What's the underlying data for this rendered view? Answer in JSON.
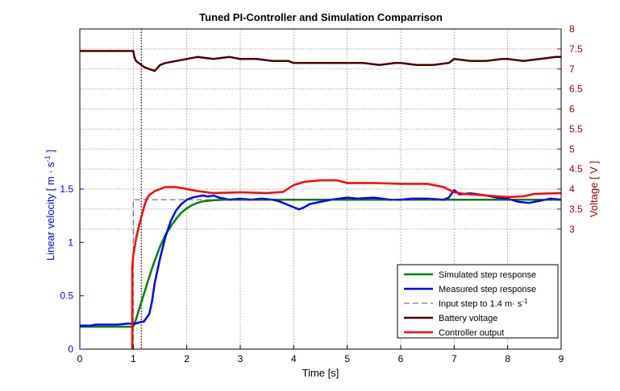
{
  "chart_data": {
    "type": "line",
    "title": "Tuned PI-Controller and Simulation Comparrison",
    "xlabel": "Time [s]",
    "ylabel_left": "Linear velocity [ m · s",
    "ylabel_left_exp": "-1",
    "ylabel_left_close": " ]",
    "ylabel_right": "Voltage [ V ]",
    "xlim": [
      0,
      9
    ],
    "ylim_left": [
      0,
      3.0
    ],
    "ylim_right": [
      0,
      8
    ],
    "grid": true,
    "legend_position": "bottom-right",
    "xticks": [
      "0",
      "1",
      "2",
      "3",
      "4",
      "5",
      "6",
      "7",
      "8",
      "9"
    ],
    "yticks_left": [
      "0",
      "0.5",
      "1",
      "1.5"
    ],
    "yticks_right": [
      "3",
      "3.5",
      "4",
      "4.5",
      "5",
      "5.5",
      "6",
      "6.5",
      "7",
      "7.5",
      "8"
    ],
    "vline_x": 1.15,
    "colors": {
      "left_axis": "#0000ff",
      "right_axis": "#990000",
      "simulated": "#008000",
      "measured": "#0000ff",
      "input": "#555555",
      "battery": "#4a0000",
      "controller": "#ff0000"
    },
    "series": [
      {
        "name": "Simulated step response",
        "axis": "left",
        "style": "solid",
        "x": [
          0,
          1,
          1.05,
          1.1,
          1.2,
          1.3,
          1.4,
          1.5,
          1.6,
          1.7,
          1.8,
          1.9,
          2.0,
          2.1,
          2.2,
          2.3,
          2.5,
          2.7,
          3.0,
          4,
          5,
          6,
          7,
          8,
          9
        ],
        "y": [
          0.21,
          0.21,
          0.28,
          0.36,
          0.52,
          0.68,
          0.83,
          0.96,
          1.07,
          1.15,
          1.22,
          1.28,
          1.32,
          1.35,
          1.37,
          1.385,
          1.395,
          1.4,
          1.4,
          1.4,
          1.4,
          1.4,
          1.4,
          1.4,
          1.4
        ]
      },
      {
        "name": "Measured step response",
        "axis": "left",
        "style": "solid",
        "x": [
          0,
          0.1,
          0.2,
          0.3,
          0.5,
          0.7,
          0.9,
          1.0,
          1.05,
          1.1,
          1.2,
          1.3,
          1.35,
          1.4,
          1.5,
          1.6,
          1.7,
          1.8,
          1.9,
          2.0,
          2.1,
          2.2,
          2.3,
          2.4,
          2.5,
          2.6,
          2.7,
          2.8,
          3.0,
          3.2,
          3.4,
          3.6,
          3.7,
          3.8,
          3.9,
          4.0,
          4.1,
          4.2,
          4.3,
          4.5,
          4.7,
          5.0,
          5.2,
          5.5,
          5.8,
          6.0,
          6.2,
          6.5,
          6.8,
          6.9,
          7.0,
          7.1,
          7.3,
          7.6,
          7.8,
          8.0,
          8.2,
          8.4,
          8.6,
          8.8,
          9.0
        ],
        "y": [
          0.22,
          0.22,
          0.22,
          0.23,
          0.23,
          0.23,
          0.24,
          0.24,
          0.24,
          0.25,
          0.26,
          0.33,
          0.45,
          0.62,
          0.85,
          1.05,
          1.2,
          1.3,
          1.36,
          1.4,
          1.42,
          1.43,
          1.44,
          1.43,
          1.44,
          1.42,
          1.41,
          1.4,
          1.41,
          1.4,
          1.41,
          1.4,
          1.39,
          1.37,
          1.35,
          1.33,
          1.31,
          1.33,
          1.36,
          1.38,
          1.4,
          1.42,
          1.41,
          1.42,
          1.4,
          1.4,
          1.41,
          1.41,
          1.4,
          1.42,
          1.49,
          1.45,
          1.46,
          1.44,
          1.42,
          1.41,
          1.38,
          1.37,
          1.39,
          1.41,
          1.4
        ]
      },
      {
        "name": "Input step to 1.4 m· s^-1",
        "axis": "left",
        "style": "dashed",
        "x": [
          1,
          1,
          9
        ],
        "y": [
          0,
          1.4,
          1.4
        ]
      },
      {
        "name": "Battery voltage",
        "axis": "right",
        "style": "solid",
        "x": [
          0,
          0.2,
          0.4,
          0.6,
          0.8,
          1.0,
          1.02,
          1.05,
          1.1,
          1.2,
          1.3,
          1.4,
          1.5,
          1.6,
          1.8,
          2.0,
          2.2,
          2.5,
          2.8,
          3.0,
          3.3,
          3.6,
          3.9,
          4.0,
          4.3,
          4.6,
          4.9,
          5.0,
          5.3,
          5.6,
          5.9,
          6.0,
          6.3,
          6.6,
          6.9,
          7.0,
          7.3,
          7.6,
          7.9,
          8.0,
          8.3,
          8.6,
          8.9,
          9.0
        ],
        "y": [
          7.45,
          7.45,
          7.45,
          7.45,
          7.45,
          7.45,
          7.3,
          7.2,
          7.15,
          7.05,
          7.0,
          6.95,
          7.1,
          7.15,
          7.2,
          7.25,
          7.3,
          7.25,
          7.3,
          7.25,
          7.25,
          7.2,
          7.2,
          7.15,
          7.15,
          7.15,
          7.15,
          7.15,
          7.15,
          7.1,
          7.15,
          7.15,
          7.1,
          7.1,
          7.15,
          7.25,
          7.2,
          7.2,
          7.25,
          7.25,
          7.2,
          7.25,
          7.3,
          7.3
        ]
      },
      {
        "name": "Controller output",
        "axis": "right",
        "style": "solid",
        "x": [
          0.98,
          0.98,
          1.0,
          1.05,
          1.1,
          1.15,
          1.2,
          1.25,
          1.3,
          1.35,
          1.4,
          1.5,
          1.6,
          1.8,
          2.0,
          2.2,
          2.5,
          3.0,
          3.5,
          3.8,
          4.0,
          4.2,
          4.5,
          4.8,
          5.0,
          5.5,
          6.0,
          6.5,
          6.8,
          7.0,
          7.2,
          7.5,
          8.0,
          8.3,
          8.5,
          9.0
        ],
        "y": [
          0.0,
          2.05,
          2.35,
          2.75,
          3.05,
          3.3,
          3.55,
          3.75,
          3.85,
          3.9,
          3.95,
          4.0,
          4.05,
          4.05,
          4.0,
          3.95,
          3.9,
          3.92,
          3.9,
          3.93,
          4.1,
          4.18,
          4.22,
          4.22,
          4.15,
          4.15,
          4.13,
          4.13,
          4.05,
          3.92,
          3.88,
          3.85,
          3.8,
          3.82,
          3.88,
          3.9
        ]
      }
    ]
  }
}
